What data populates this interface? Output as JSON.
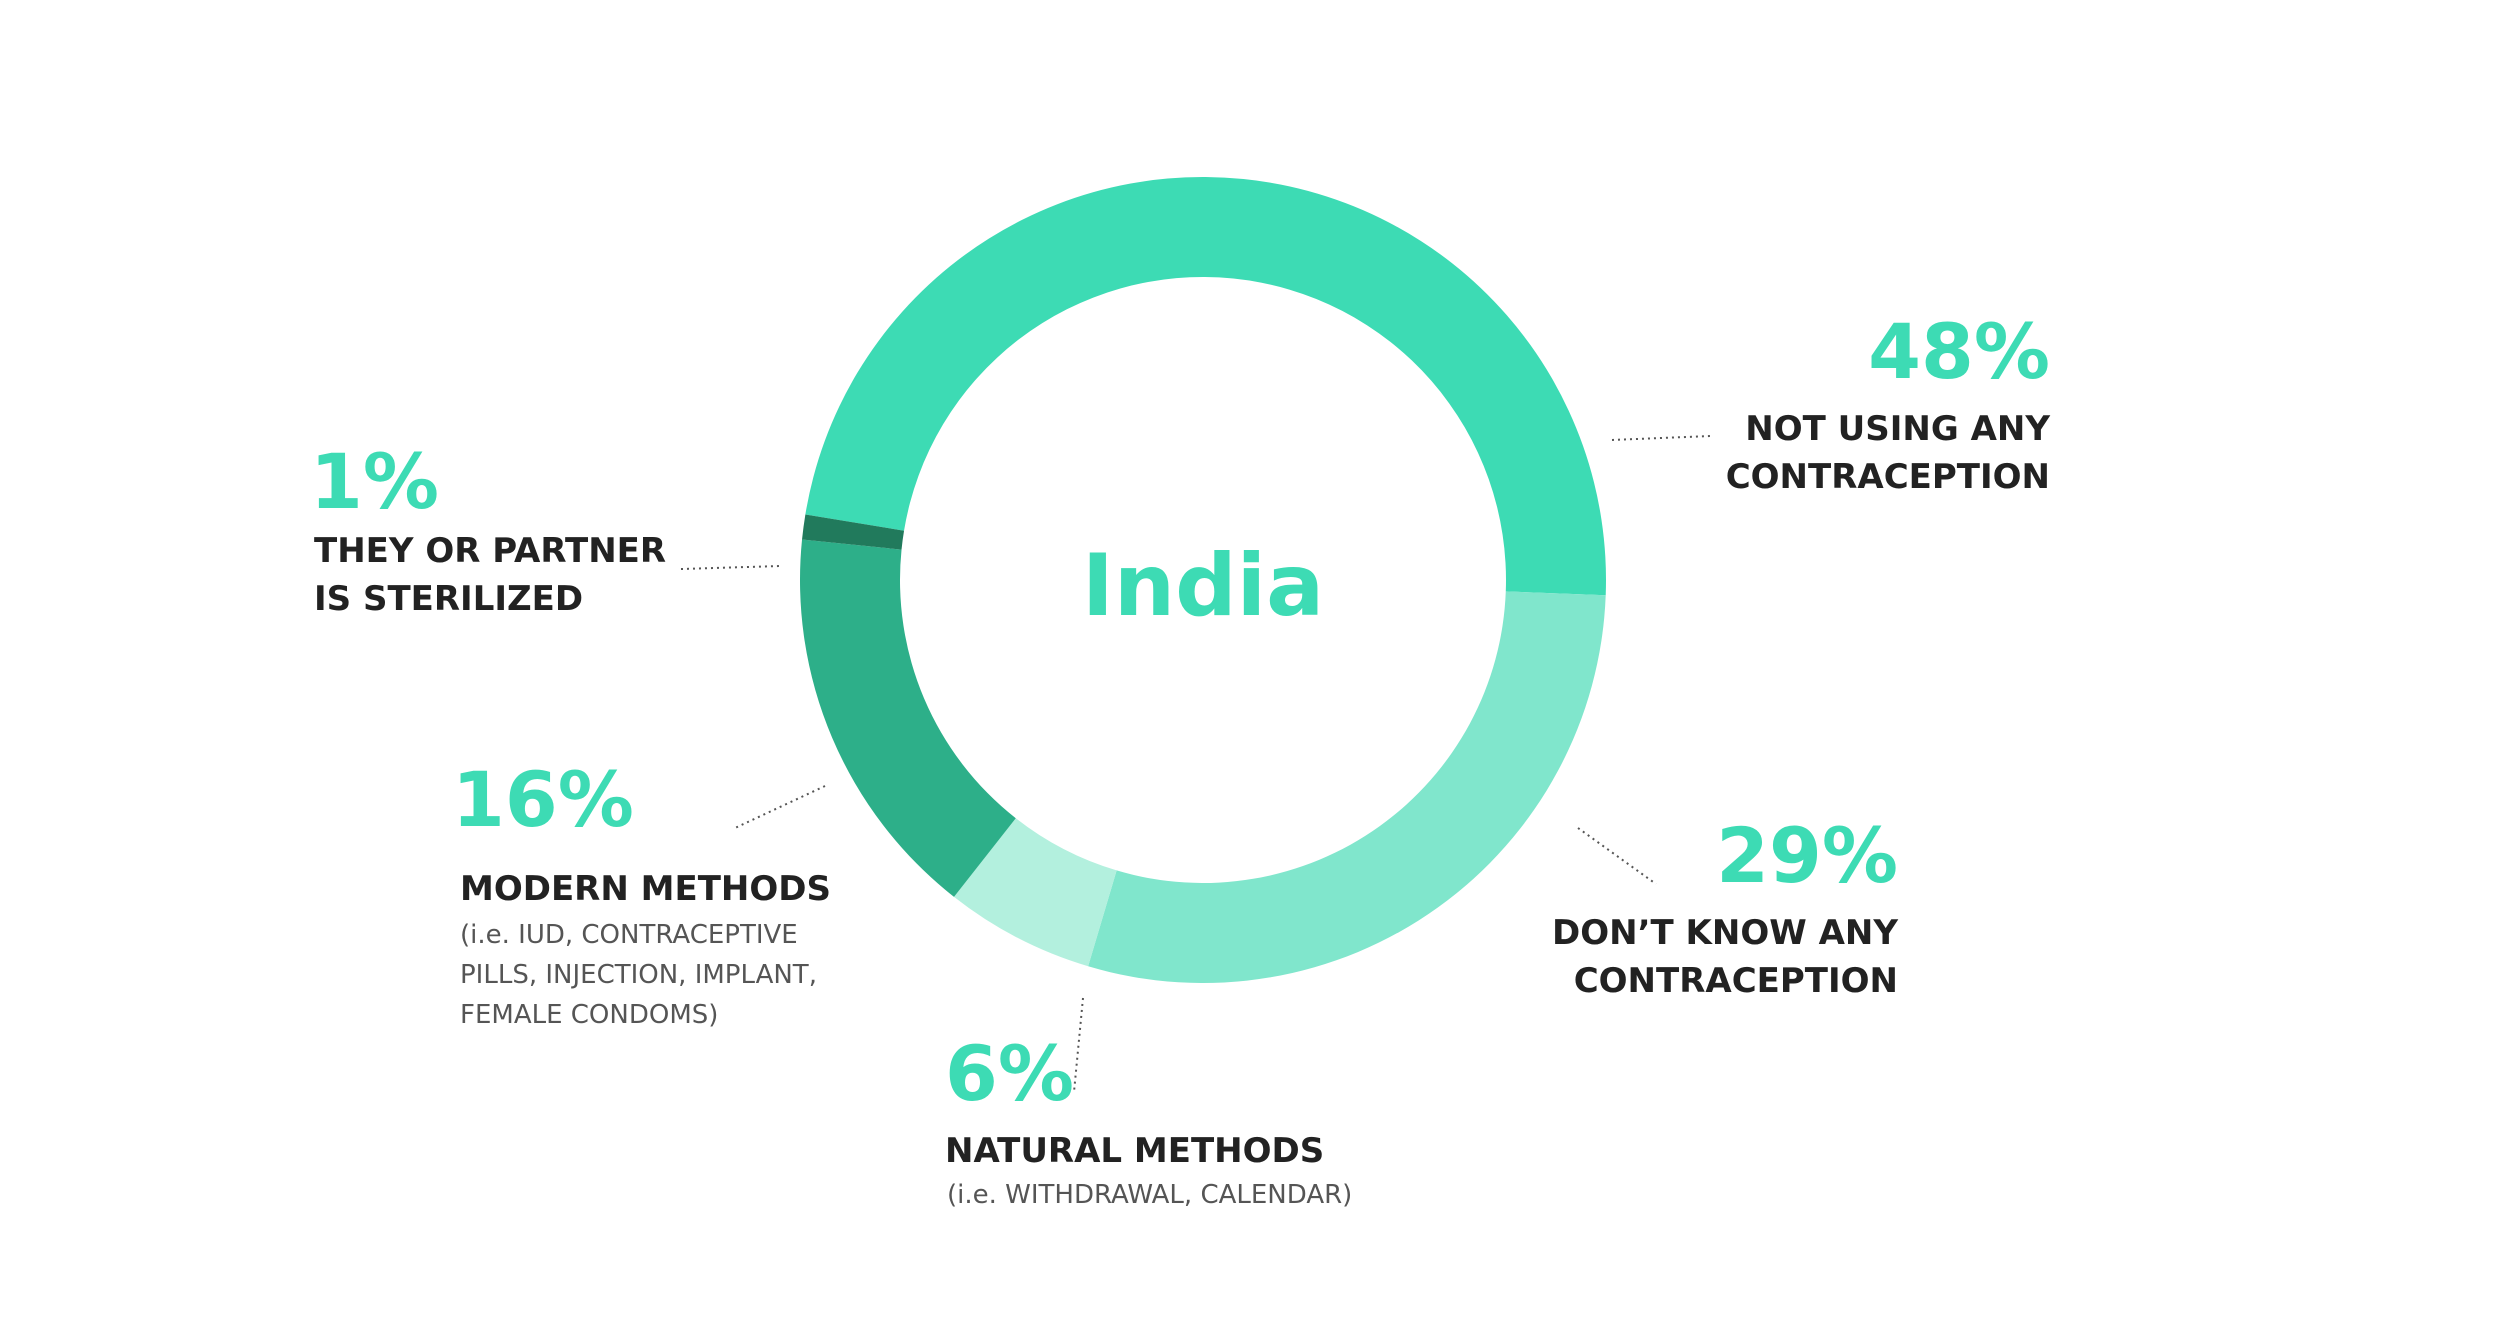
{
  "chart_data": {
    "type": "pie",
    "title": "India",
    "slices": [
      {
        "label": "NOT USING ANY CONTRACEPTION",
        "value": 48,
        "display": "48%",
        "color": "#3ddbb4"
      },
      {
        "label": "DON'T KNOW ANY CONTRACEPTION",
        "value": 29,
        "display": "29%",
        "color": "#80e6cc"
      },
      {
        "label": "NATURAL METHODS",
        "value": 6,
        "display": "6%",
        "color": "#b3f0de"
      },
      {
        "label": "MODERN METHODS",
        "value": 16,
        "display": "16%",
        "color": "#2daf89"
      },
      {
        "label": "THEY OR PARTNER IS STERILIZED",
        "value": 1,
        "display": "1%",
        "color": "#217a5c"
      }
    ]
  },
  "annotations": {
    "not_using": {
      "pct": "48%",
      "line1": "NOT USING ANY",
      "line2": "CONTRACEPTION"
    },
    "dont_know": {
      "pct": "29%",
      "line1": "DON’T KNOW ANY",
      "line2": "CONTRACEPTION"
    },
    "natural": {
      "pct": "6%",
      "line1": "NATURAL METHODS",
      "sub1": "(i.e. WITHDRAWAL, CALENDAR)"
    },
    "modern": {
      "pct": "16%",
      "line1": "MODERN METHODS",
      "sub1": "(i.e. IUD, CONTRACEPTIVE",
      "sub2": "PILLS, INJECTION, IMPLANT,",
      "sub3": "FEMALE CONDOMS)"
    },
    "sterilized": {
      "pct": "1%",
      "line1": "THEY OR PARTNER",
      "line2": "IS STERILIZED"
    }
  },
  "colors": {
    "accent": "#3ddbb4",
    "text_dark": "#222222",
    "text_sub": "#555555"
  }
}
